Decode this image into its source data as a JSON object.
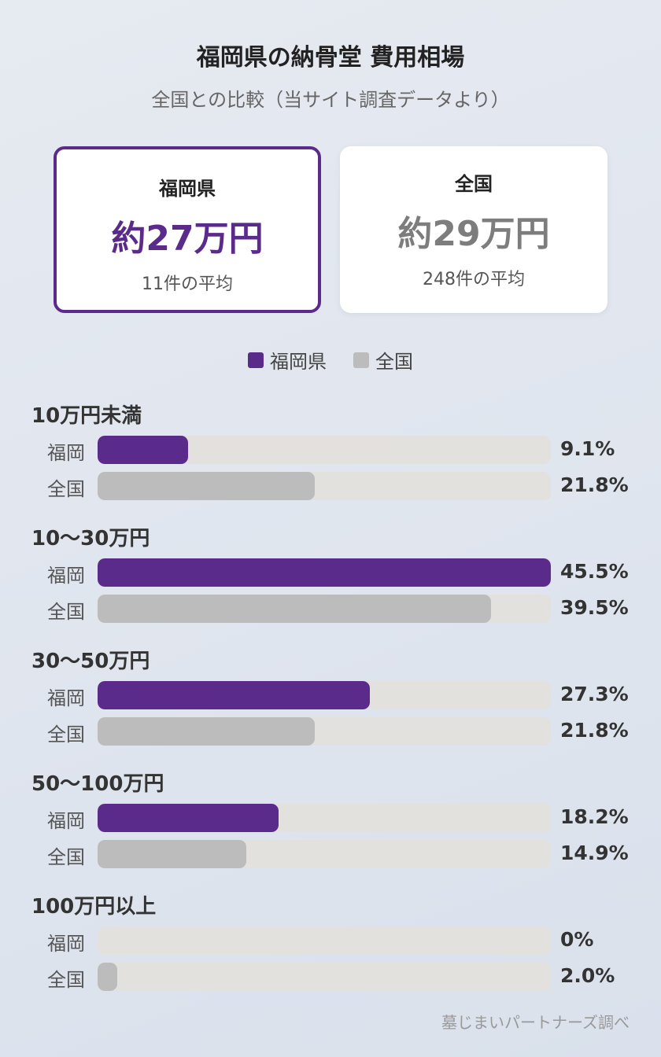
{
  "title": "福岡県の納骨堂 費用相場",
  "subtitle": "全国との比較（当サイト調査データより）",
  "cards": {
    "fukuoka": {
      "label": "福岡県",
      "value": "約27万円",
      "count": "11件の平均"
    },
    "national": {
      "label": "全国",
      "value": "約29万円",
      "count": "248件の平均"
    }
  },
  "legend": {
    "fukuoka": "福岡県",
    "national": "全国"
  },
  "colors": {
    "fukuoka": "#5b2b8b",
    "national": "#bcbcbc",
    "track": "#e3e1de"
  },
  "row_labels": {
    "fukuoka": "福岡",
    "national": "全国"
  },
  "chart_data": {
    "type": "bar",
    "orientation": "horizontal",
    "categories": [
      "10万円未満",
      "10〜30万円",
      "30〜50万円",
      "50〜100万円",
      "100万円以上"
    ],
    "series": [
      {
        "name": "福岡県",
        "values": [
          9.1,
          45.5,
          27.3,
          18.2,
          0
        ]
      },
      {
        "name": "全国",
        "values": [
          21.8,
          39.5,
          21.8,
          14.9,
          2.0
        ]
      }
    ],
    "value_labels": {
      "fukuoka": [
        "9.1%",
        "45.5%",
        "27.3%",
        "18.2%",
        "0%"
      ],
      "national": [
        "21.8%",
        "39.5%",
        "21.8%",
        "14.9%",
        "2.0%"
      ]
    },
    "xlim": [
      0,
      45.5
    ],
    "unit": "%",
    "legend_position": "top-center"
  },
  "source": "墓じまいパートナーズ調べ"
}
